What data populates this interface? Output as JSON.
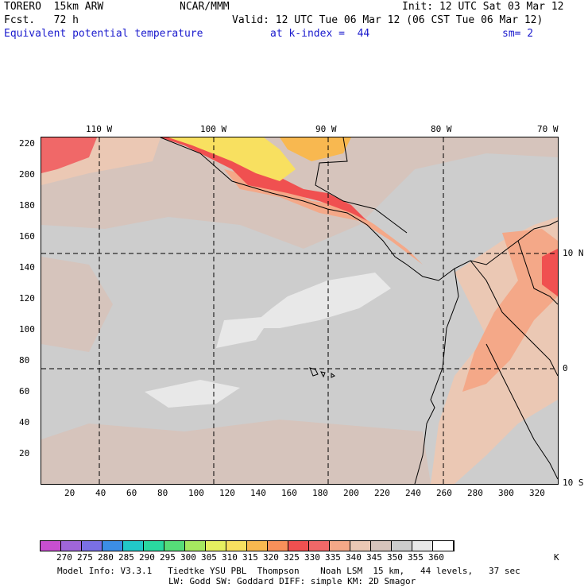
{
  "header": {
    "model": "TORERO  15km ARW",
    "org": "NCAR/MMM",
    "init": "Init: 12 UTC Sat 03 Mar 12",
    "fcst": "Fcst.   72 h",
    "valid": "Valid: 12 UTC Tue 06 Mar 12 (06 CST Tue 06 Mar 12)",
    "field": "Equivalent potential temperature",
    "level": "at k-index =  44",
    "smooth": "sm= 2"
  },
  "longitude_labels": [
    "110 W",
    "100 W",
    "90 W",
    "80 W",
    "70 W"
  ],
  "latitude_labels": [
    "10 N",
    "0",
    "10 S"
  ],
  "grid_y_labels": [
    "220",
    "200",
    "180",
    "160",
    "140",
    "120",
    "100",
    "80",
    "60",
    "40",
    "20"
  ],
  "grid_x_labels": [
    "20",
    "40",
    "60",
    "80",
    "100",
    "120",
    "140",
    "160",
    "180",
    "200",
    "220",
    "240",
    "260",
    "280",
    "300",
    "320"
  ],
  "colorbar": {
    "unit": "K",
    "values": [
      "270",
      "275",
      "280",
      "285",
      "290",
      "295",
      "300",
      "305",
      "310",
      "315",
      "320",
      "325",
      "330",
      "335",
      "340",
      "345",
      "350",
      "355",
      "360"
    ],
    "colors": [
      "#c84fd0",
      "#a066d8",
      "#7a70e4",
      "#3c8ee6",
      "#22c8c8",
      "#2ad8a0",
      "#56dc78",
      "#a6e860",
      "#e6f060",
      "#f8e060",
      "#f8b850",
      "#f8905a",
      "#f05050",
      "#f06868",
      "#f4a888",
      "#ebc8b4",
      "#d6c4bc",
      "#cdcdcd",
      "#e8e8e8",
      "#ffffff"
    ]
  },
  "footer": {
    "line1": "Model Info: V3.3.1   Tiedtke YSU PBL  Thompson    Noah LSM  15 km,   44 levels,   37 sec",
    "line2": "LW: Godd SW: Goddard DIFF: simple KM: 2D Smagor"
  }
}
